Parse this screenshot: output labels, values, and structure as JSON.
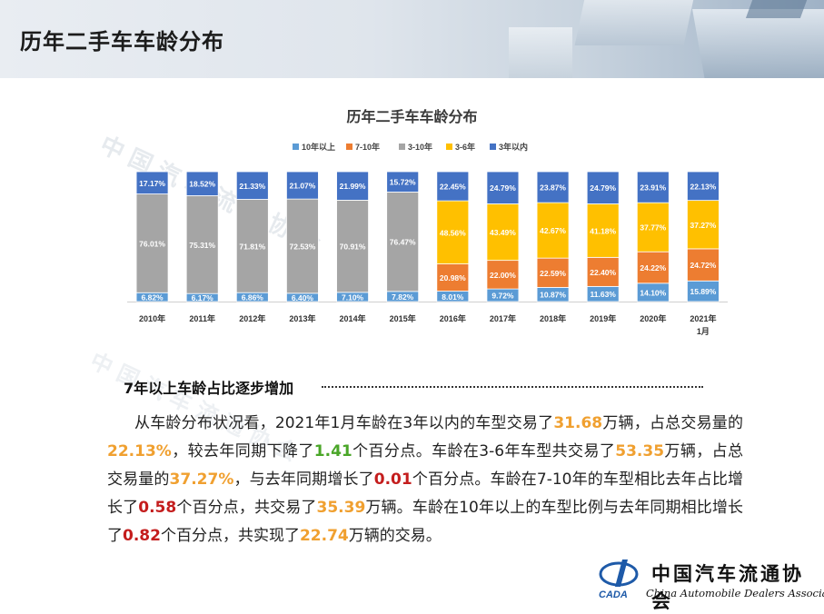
{
  "page": {
    "title": "历年二手车车龄分布"
  },
  "section": {
    "heading": "7年以上车龄占比逐步增加"
  },
  "colors": {
    "s10plus": "#5b9bd5",
    "s7to10": "#ed7d31",
    "s3to10": "#a5a5a5",
    "s3to6": "#ffc000",
    "s3minus": "#4472c4",
    "hl_orange": "#f0a030",
    "hl_green": "#4aa628",
    "hl_red": "#c41d1d"
  },
  "paragraph": [
    {
      "t": "从车龄分布状况看，2021年1月车龄在3年以内的车型交易了",
      "c": ""
    },
    {
      "t": "31.68",
      "c": "orange"
    },
    {
      "t": "万辆，占总交易量的",
      "c": ""
    },
    {
      "t": "22.13%",
      "c": "orange"
    },
    {
      "t": "，较去年同期下降了",
      "c": ""
    },
    {
      "t": "1.41",
      "c": "green"
    },
    {
      "t": "个百分点。车龄在3-6年车型共交易了",
      "c": ""
    },
    {
      "t": "53.35",
      "c": "orange"
    },
    {
      "t": "万辆，占总交易量的",
      "c": ""
    },
    {
      "t": "37.27%",
      "c": "orange"
    },
    {
      "t": "，与去年同期增长了",
      "c": ""
    },
    {
      "t": "0.01",
      "c": "red"
    },
    {
      "t": "个百分点。车龄在7-10年的车型相比去年占比增长了",
      "c": ""
    },
    {
      "t": "0.58",
      "c": "red"
    },
    {
      "t": "个百分点，共交易了",
      "c": ""
    },
    {
      "t": "35.39",
      "c": "orange"
    },
    {
      "t": "万辆。车龄在10年以上的车型比例与去年同期相比增长了",
      "c": ""
    },
    {
      "t": "0.82",
      "c": "red"
    },
    {
      "t": "个百分点，共实现了",
      "c": ""
    },
    {
      "t": "22.74",
      "c": "orange"
    },
    {
      "t": "万辆的交易。",
      "c": ""
    }
  ],
  "watermark": {
    "text": "中国汽车流通协会"
  },
  "logo": {
    "icon": "cada-logo-icon",
    "abbr": "CADA",
    "name_cn": "中国汽车流通协会",
    "name_en": "China Automobile Dealers Association"
  },
  "chart_data": {
    "type": "bar",
    "stacked": true,
    "title": "历年二手车车龄分布",
    "legend_position": "top",
    "categories": [
      "2010年",
      "2011年",
      "2012年",
      "2013年",
      "2014年",
      "2015年",
      "2016年",
      "2017年",
      "2018年",
      "2019年",
      "2020年",
      "2021年1月"
    ],
    "ylim": [
      0,
      100
    ],
    "series": [
      {
        "name": "10年以上",
        "color": "#5b9bd5",
        "values": [
          6.82,
          6.17,
          6.86,
          6.4,
          7.1,
          7.82,
          8.01,
          9.72,
          10.87,
          11.63,
          14.1,
          15.89
        ],
        "labels": [
          "6.82%",
          "6.17%",
          "6.86%",
          "6.40%",
          "7.10%",
          "7.82%",
          "8.01%",
          "9.72%",
          "10.87%",
          "11.63%",
          "14.10%",
          "15.89%"
        ]
      },
      {
        "name": "7-10年",
        "color": "#ed7d31",
        "values": [
          null,
          null,
          null,
          null,
          null,
          null,
          20.98,
          22.0,
          22.59,
          22.4,
          24.22,
          24.72
        ],
        "labels": [
          "",
          "",
          "",
          "",
          "",
          "",
          "20.98%",
          "22.00%",
          "22.59%",
          "22.40%",
          "24.22%",
          "24.72%"
        ]
      },
      {
        "name": "3-10年",
        "color": "#a5a5a5",
        "values": [
          76.01,
          75.31,
          71.81,
          72.53,
          70.91,
          76.47,
          null,
          null,
          null,
          null,
          null,
          null
        ],
        "labels": [
          "76.01%",
          "75.31%",
          "71.81%",
          "72.53%",
          "70.91%",
          "76.47%",
          "",
          "",
          "",
          "",
          "",
          ""
        ]
      },
      {
        "name": "3-6年",
        "color": "#ffc000",
        "values": [
          null,
          null,
          null,
          null,
          null,
          null,
          48.56,
          43.49,
          42.67,
          41.18,
          37.77,
          37.27
        ],
        "labels": [
          "",
          "",
          "",
          "",
          "",
          "",
          "48.56%",
          "43.49%",
          "42.67%",
          "41.18%",
          "37.77%",
          "37.27%"
        ]
      },
      {
        "name": "3年以内",
        "color": "#4472c4",
        "values": [
          17.17,
          18.52,
          21.33,
          21.07,
          21.99,
          15.72,
          22.45,
          24.79,
          23.87,
          24.79,
          23.91,
          22.13
        ],
        "labels": [
          "17.17%",
          "18.52%",
          "21.33%",
          "21.07%",
          "21.99%",
          "15.72%",
          "22.45%",
          "24.79%",
          "23.87%",
          "24.79%",
          "23.91%",
          "22.13%"
        ]
      }
    ]
  }
}
